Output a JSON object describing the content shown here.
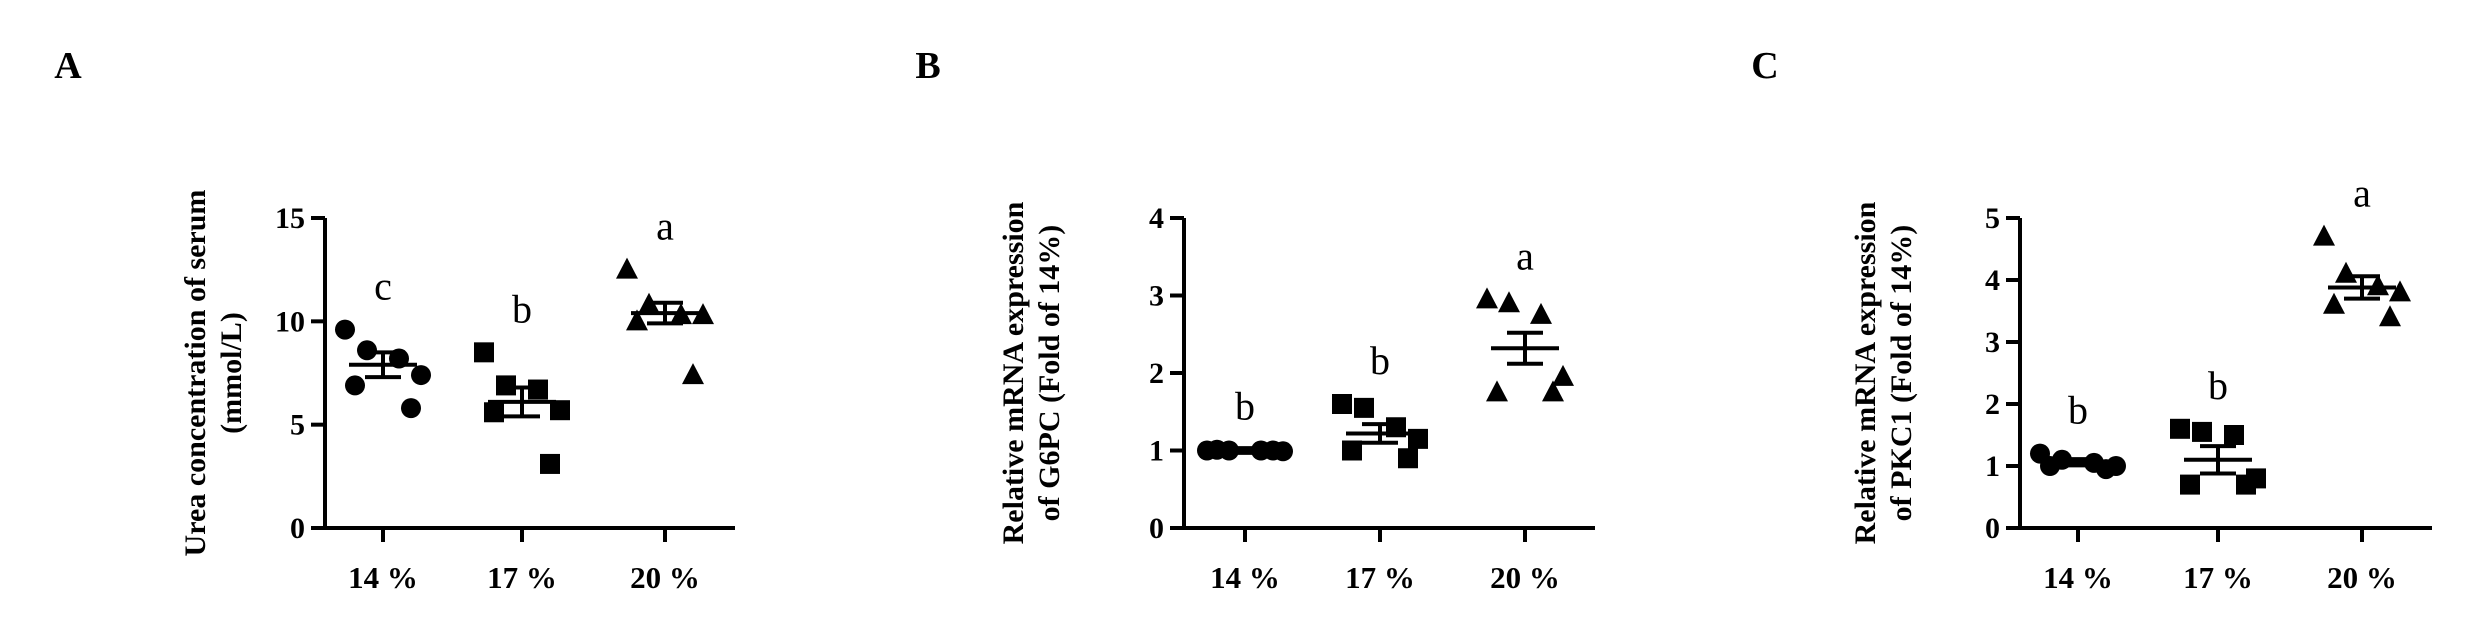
{
  "chart_data": [
    {
      "type": "scatter",
      "panel_label": "A",
      "ylabel_lines": [
        "Urea concentration of serum",
        "(mmol/L)"
      ],
      "ylim": [
        0,
        15
      ],
      "yticks": [
        0,
        5,
        10,
        15
      ],
      "categories": [
        "14 %",
        "17 %",
        "20 %"
      ],
      "marker": "circle-square-triangle",
      "groups": [
        {
          "category": "14 %",
          "marker": "circle",
          "letter": "c",
          "mean": 7.9,
          "sem": 0.6,
          "points": [
            9.6,
            8.6,
            8.2,
            7.4,
            6.9,
            5.8
          ]
        },
        {
          "category": "17 %",
          "marker": "square",
          "letter": "b",
          "mean": 6.1,
          "sem": 0.7,
          "points": [
            8.5,
            6.9,
            6.7,
            5.7,
            5.6,
            3.1
          ]
        },
        {
          "category": "20 %",
          "marker": "triangle",
          "letter": "a",
          "mean": 10.4,
          "sem": 0.5,
          "points": [
            12.5,
            10.8,
            10.3,
            10.3,
            10.0,
            7.4
          ]
        }
      ]
    },
    {
      "type": "scatter",
      "panel_label": "B",
      "ylabel_lines": [
        "Relative mRNA expression",
        "of G6PC (Fold of 14%)"
      ],
      "ylim": [
        0,
        4
      ],
      "yticks": [
        0,
        1,
        2,
        3,
        4
      ],
      "categories": [
        "14 %",
        "17 %",
        "20 %"
      ],
      "groups": [
        {
          "category": "14 %",
          "marker": "circle",
          "letter": "b",
          "mean": 1.0,
          "sem": 0.03,
          "points": [
            1.0,
            1.0,
            1.0,
            0.99,
            1.01,
            1.0
          ]
        },
        {
          "category": "17 %",
          "marker": "square",
          "letter": "b",
          "mean": 1.22,
          "sem": 0.12,
          "points": [
            1.6,
            1.55,
            1.3,
            1.15,
            1.0,
            0.9
          ]
        },
        {
          "category": "20 %",
          "marker": "triangle",
          "letter": "a",
          "mean": 2.32,
          "sem": 0.2,
          "points": [
            2.95,
            2.9,
            2.75,
            1.95,
            1.75,
            1.75
          ]
        }
      ]
    },
    {
      "type": "scatter",
      "panel_label": "C",
      "ylabel_lines": [
        "Relative mRNA expression",
        "of PKC1 (Fold of 14%)"
      ],
      "ylim": [
        0,
        5
      ],
      "yticks": [
        0,
        1,
        2,
        3,
        4,
        5
      ],
      "categories": [
        "14 %",
        "17 %",
        "20 %"
      ],
      "groups": [
        {
          "category": "14 %",
          "marker": "circle",
          "letter": "b",
          "mean": 1.06,
          "sem": 0.05,
          "points": [
            1.2,
            1.1,
            1.05,
            1.0,
            1.0,
            0.95
          ]
        },
        {
          "category": "17 %",
          "marker": "square",
          "letter": "b",
          "mean": 1.1,
          "sem": 0.22,
          "points": [
            1.6,
            1.55,
            1.5,
            0.8,
            0.7,
            0.7
          ]
        },
        {
          "category": "20 %",
          "marker": "triangle",
          "letter": "a",
          "mean": 3.88,
          "sem": 0.18,
          "points": [
            4.7,
            4.1,
            3.9,
            3.8,
            3.6,
            3.4
          ]
        }
      ]
    }
  ]
}
